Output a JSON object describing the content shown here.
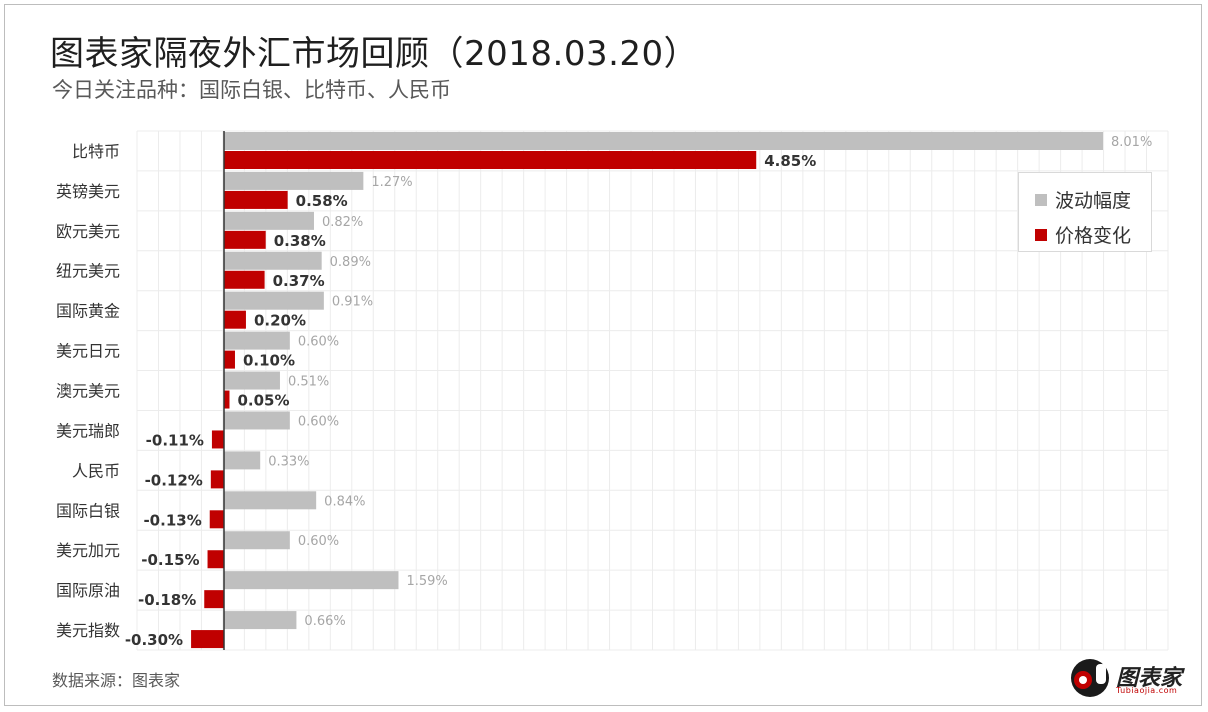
{
  "title": "图表家隔夜外汇市场回顾（2018.03.20）",
  "subtitle": "今日关注品种：国际白银、比特币、人民币",
  "source": "数据来源：图表家",
  "logo": {
    "text": "图表家",
    "sub": "Tubiaojia.com"
  },
  "colors": {
    "volatility": "#bfbfbf",
    "change": "#c00000"
  },
  "chart_data": {
    "type": "bar",
    "orientation": "horizontal",
    "categories": [
      "比特币",
      "英镑美元",
      "欧元美元",
      "纽元美元",
      "国际黄金",
      "美元日元",
      "澳元美元",
      "美元瑞郎",
      "人民币",
      "国际白银",
      "美元加元",
      "国际原油",
      "美元指数"
    ],
    "series": [
      {
        "name": "波动幅度",
        "values": [
          8.01,
          1.27,
          0.82,
          0.89,
          0.91,
          0.6,
          0.51,
          0.6,
          0.33,
          0.84,
          0.6,
          1.59,
          0.66
        ],
        "labels": [
          "8.01%",
          "1.27%",
          "0.82%",
          "0.89%",
          "0.91%",
          "0.60%",
          "0.51%",
          "0.60%",
          "0.33%",
          "0.84%",
          "0.60%",
          "1.59%",
          "0.66%"
        ]
      },
      {
        "name": "价格变化",
        "values": [
          4.85,
          0.58,
          0.38,
          0.37,
          0.2,
          0.1,
          0.05,
          -0.11,
          -0.12,
          -0.13,
          -0.15,
          -0.18,
          -0.3
        ],
        "labels": [
          "4.85%",
          "0.58%",
          "0.38%",
          "0.37%",
          "0.20%",
          "0.10%",
          "0.05%",
          "-0.11%",
          "-0.12%",
          "-0.13%",
          "-0.15%",
          "-0.18%",
          "-0.30%"
        ]
      }
    ],
    "xlim": [
      -0.8,
      8.6
    ],
    "grid": true,
    "legend": "top-right"
  }
}
